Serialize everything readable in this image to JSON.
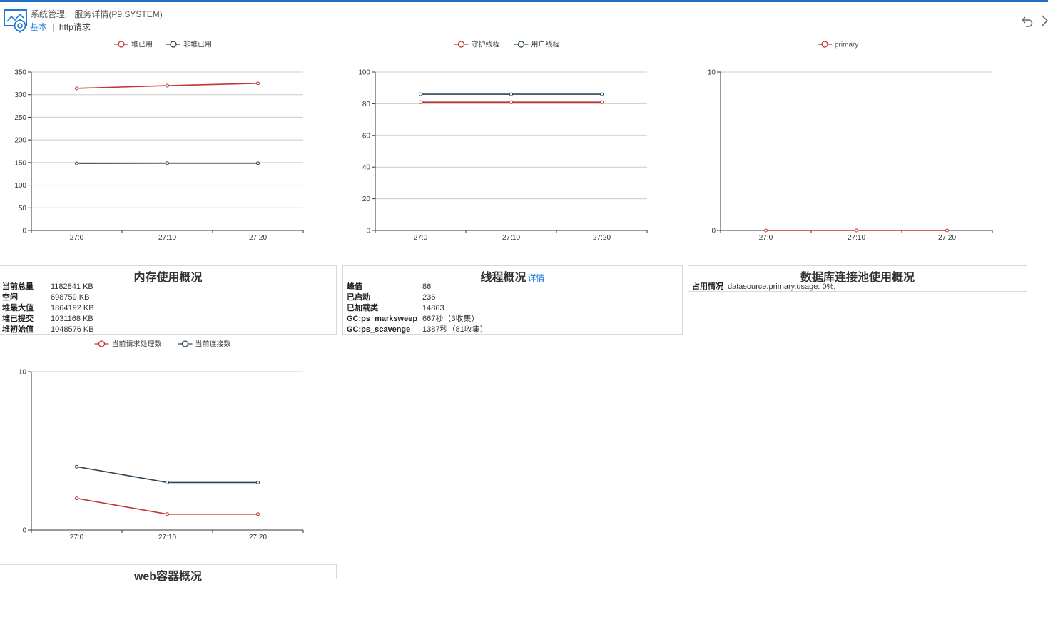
{
  "header": {
    "title_prefix": "系统管理:",
    "title": "服务详情(P9.SYSTEM)",
    "tabs": [
      {
        "label": "基本",
        "active": true
      },
      {
        "label": "http请求",
        "active": false
      }
    ],
    "icons": [
      "gear-monitor-logo",
      "undo-icon",
      "chevron-right-icon"
    ],
    "accent": "#1f7ad6"
  },
  "charts": {
    "memory": {
      "chart_data": {
        "type": "line",
        "categories": [
          "27:0",
          "27:10",
          "27:20"
        ],
        "series": [
          {
            "name": "堆已用",
            "color": "#c23531",
            "values": [
              314,
              320,
              325
            ]
          },
          {
            "name": "非堆已用",
            "color": "#2f4554",
            "values": [
              148,
              148.5,
              148.5
            ]
          }
        ],
        "ylim": [
          0,
          350
        ],
        "yticks": [
          0,
          50,
          100,
          150,
          200,
          250,
          300,
          350
        ],
        "grid": true,
        "legend": "top-center"
      }
    },
    "threads": {
      "chart_data": {
        "type": "line",
        "categories": [
          "27:0",
          "27:10",
          "27:20"
        ],
        "series": [
          {
            "name": "守护线程",
            "color": "#c23531",
            "values": [
              81,
              81,
              81
            ]
          },
          {
            "name": "用户线程",
            "color": "#2f4554",
            "values": [
              86,
              86,
              86
            ]
          }
        ],
        "ylim": [
          0,
          100
        ],
        "yticks": [
          0,
          20,
          40,
          60,
          80,
          100
        ],
        "grid": true,
        "legend": "top-center"
      }
    },
    "db": {
      "chart_data": {
        "type": "line",
        "categories": [
          "27:0",
          "27:10",
          "27:20"
        ],
        "series": [
          {
            "name": "primary",
            "color": "#c23531",
            "values": [
              0,
              0,
              0
            ]
          }
        ],
        "ylim": [
          0,
          10
        ],
        "yticks": [
          0,
          10
        ],
        "grid": true,
        "legend": "top-center"
      }
    },
    "web": {
      "chart_data": {
        "type": "line",
        "categories": [
          "27:0",
          "27:10",
          "27:20"
        ],
        "series": [
          {
            "name": "当前请求处理数",
            "color": "#c23531",
            "values": [
              2,
              1,
              1
            ]
          },
          {
            "name": "当前连接数",
            "color": "#2f4554",
            "values": [
              4,
              3,
              3
            ]
          }
        ],
        "ylim": [
          0,
          10
        ],
        "yticks": [
          0,
          10
        ],
        "grid": true,
        "legend": "top-center"
      }
    }
  },
  "panels": {
    "memory": {
      "title": "内存使用概况",
      "rows": [
        {
          "key": "当前总量",
          "value": "1182841 KB"
        },
        {
          "key": "空闲",
          "value": "698759 KB"
        },
        {
          "key": "堆最大值",
          "value": "1864192 KB"
        },
        {
          "key": "堆已提交",
          "value": "1031168 KB"
        },
        {
          "key": "堆初始值",
          "value": "1048576 KB"
        }
      ]
    },
    "threads": {
      "title": "线程概况",
      "link": "详情",
      "rows": [
        {
          "key": "峰值",
          "value": "86"
        },
        {
          "key": "已启动",
          "value": "236"
        },
        {
          "key": "已加载类",
          "value": "14863"
        },
        {
          "key": "GC:ps_marksweep",
          "value": "667秒（3收集）"
        },
        {
          "key": "GC:ps_scavenge",
          "value": "1387秒（81收集）"
        }
      ]
    },
    "db": {
      "title": "数据库连接池使用概况",
      "rows": [
        {
          "key": "占用情况",
          "value": "datasource.primary.usage: 0%;"
        }
      ]
    },
    "web": {
      "title": "web容器概况"
    }
  }
}
